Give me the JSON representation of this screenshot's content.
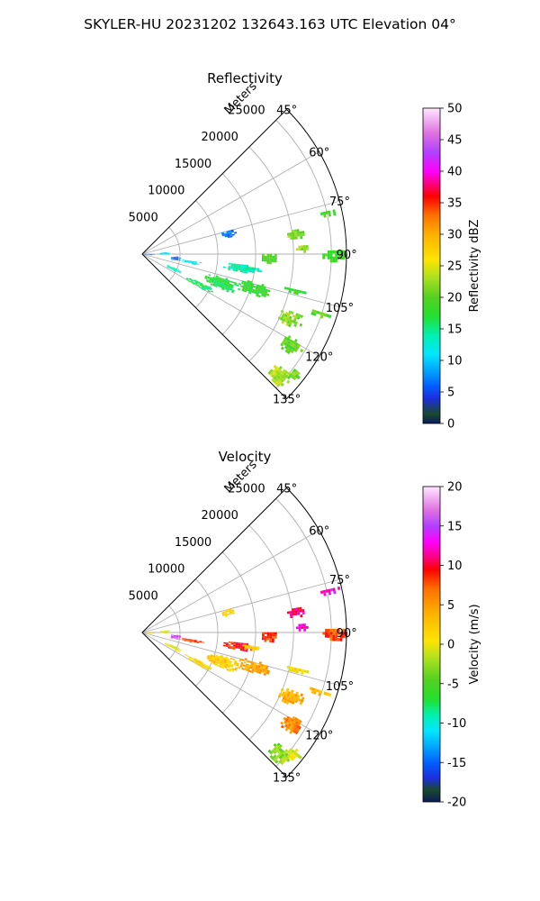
{
  "figure": {
    "title": "SKYLER-HU  20231202  132643.163 UTC Elevation 04°"
  },
  "chart_data": [
    {
      "type": "heatmap",
      "subtype": "polar-sector-ppi",
      "title": "Reflectivity",
      "range_label": "Meters",
      "range_ticks": [
        5000,
        10000,
        15000,
        20000,
        25000
      ],
      "range_lim": [
        0,
        27000
      ],
      "azimuth_ticks": [
        "45°",
        "60°",
        "75°",
        "90°",
        "105°",
        "120°",
        "135°"
      ],
      "azimuth_lim": [
        45,
        135
      ],
      "grid": true,
      "colorbar": {
        "label": "Reflectivity dBZ",
        "min": 0,
        "max": 50,
        "ticks": [
          0,
          5,
          10,
          15,
          20,
          25,
          30,
          35,
          40,
          45,
          50
        ],
        "stops": [
          {
            "v": 0,
            "c": "#0a1a5c"
          },
          {
            "v": 1.5,
            "c": "#1a4a2c"
          },
          {
            "v": 4,
            "c": "#1c2ee0"
          },
          {
            "v": 6,
            "c": "#0060ff"
          },
          {
            "v": 8.5,
            "c": "#00a8ff"
          },
          {
            "v": 11,
            "c": "#00e6ff"
          },
          {
            "v": 14,
            "c": "#00f0b0"
          },
          {
            "v": 17,
            "c": "#22e030"
          },
          {
            "v": 20,
            "c": "#55d020"
          },
          {
            "v": 23,
            "c": "#a8e020"
          },
          {
            "v": 26,
            "c": "#ffe400"
          },
          {
            "v": 30,
            "c": "#ffb000"
          },
          {
            "v": 33,
            "c": "#ff7000"
          },
          {
            "v": 36,
            "c": "#ff0000"
          },
          {
            "v": 38,
            "c": "#ff0080"
          },
          {
            "v": 40,
            "c": "#ff00ff"
          },
          {
            "v": 43,
            "c": "#b040ff"
          },
          {
            "v": 46,
            "c": "#e070e0"
          },
          {
            "v": 50,
            "c": "#ffe8ff"
          }
        ]
      },
      "echoes": [
        {
          "az": [
            80,
            84
          ],
          "r": [
            19000,
            21500
          ],
          "value": 21
        },
        {
          "az": [
            76,
            78
          ],
          "r": [
            23500,
            26500
          ],
          "value": 19
        },
        {
          "az": [
            86,
            89
          ],
          "r": [
            20000,
            22000
          ],
          "value": 22
        },
        {
          "az": [
            88,
            92
          ],
          "r": [
            23500,
            27000
          ],
          "value": 19
        },
        {
          "az": [
            89,
            94
          ],
          "r": [
            15500,
            17800
          ],
          "value": 19
        },
        {
          "az": [
            95,
            100
          ],
          "r": [
            10500,
            15000
          ],
          "value": 14
        },
        {
          "az": [
            103,
            110
          ],
          "r": [
            13000,
            17500
          ],
          "value": 18
        },
        {
          "az": [
            105,
            114
          ],
          "r": [
            8500,
            13500
          ],
          "value": 17
        },
        {
          "az": [
            115,
            120
          ],
          "r": [
            6000,
            10500
          ],
          "value": 16
        },
        {
          "az": [
            112,
            118
          ],
          "r": [
            3000,
            5500
          ],
          "value": 13
        },
        {
          "az": [
            97,
            101
          ],
          "r": [
            5000,
            8000
          ],
          "value": 12
        },
        {
          "az": [
            96,
            99
          ],
          "r": [
            13000,
            16000
          ],
          "value": 14
        },
        {
          "az": [
            102,
            104
          ],
          "r": [
            19000,
            22500
          ],
          "value": 18
        },
        {
          "az": [
            107,
            109
          ],
          "r": [
            23000,
            26000
          ],
          "value": 20
        },
        {
          "az": [
            110,
            116
          ],
          "r": [
            19500,
            23000
          ],
          "value": 22
        },
        {
          "az": [
            118,
            124
          ],
          "r": [
            21500,
            24500
          ],
          "value": 20
        },
        {
          "az": [
            128,
            134
          ],
          "r": [
            22500,
            25500
          ],
          "value": 23
        },
        {
          "az": [
            126,
            130
          ],
          "r": [
            24500,
            26500
          ],
          "value": 21
        },
        {
          "az": [
            74,
            79
          ],
          "r": [
            10500,
            12500
          ],
          "value": 7
        },
        {
          "az": [
            84,
            92
          ],
          "r": [
            2000,
            3500
          ],
          "value": 11
        },
        {
          "az": [
            90,
            96
          ],
          "r": [
            0,
            1500
          ],
          "value": 4
        },
        {
          "az": [
            93,
            101
          ],
          "r": [
            3500,
            5000
          ],
          "value": 6
        }
      ]
    },
    {
      "type": "heatmap",
      "subtype": "polar-sector-ppi",
      "title": "Velocity",
      "range_label": "Meters",
      "range_ticks": [
        5000,
        10000,
        15000,
        20000,
        25000
      ],
      "range_lim": [
        0,
        27000
      ],
      "azimuth_ticks": [
        "45°",
        "60°",
        "75°",
        "90°",
        "105°",
        "120°",
        "135°"
      ],
      "azimuth_lim": [
        45,
        135
      ],
      "grid": true,
      "colorbar": {
        "label": "Velocity (m/s)",
        "min": -20,
        "max": 20,
        "ticks": [
          -20,
          -15,
          -10,
          -5,
          0,
          5,
          10,
          15,
          20
        ],
        "stops": [
          {
            "v": -20,
            "c": "#0a1a5c"
          },
          {
            "v": -18.5,
            "c": "#1a4a2c"
          },
          {
            "v": -17,
            "c": "#1c2ee0"
          },
          {
            "v": -15,
            "c": "#0060ff"
          },
          {
            "v": -13,
            "c": "#00a8ff"
          },
          {
            "v": -11,
            "c": "#00e6ff"
          },
          {
            "v": -9,
            "c": "#00f0b0"
          },
          {
            "v": -7,
            "c": "#22e030"
          },
          {
            "v": -4.5,
            "c": "#55d020"
          },
          {
            "v": -2,
            "c": "#a8e020"
          },
          {
            "v": 0.5,
            "c": "#ffe400"
          },
          {
            "v": 4,
            "c": "#ffb000"
          },
          {
            "v": 7,
            "c": "#ff7000"
          },
          {
            "v": 9.5,
            "c": "#ff0000"
          },
          {
            "v": 11,
            "c": "#ff0080"
          },
          {
            "v": 13,
            "c": "#ff00ff"
          },
          {
            "v": 15,
            "c": "#b040ff"
          },
          {
            "v": 17,
            "c": "#e070e0"
          },
          {
            "v": 20,
            "c": "#ffe8ff"
          }
        ]
      },
      "echoes": [
        {
          "az": [
            80,
            84
          ],
          "r": [
            19000,
            21500
          ],
          "value": 11
        },
        {
          "az": [
            76,
            78
          ],
          "r": [
            23500,
            26500
          ],
          "value": 13
        },
        {
          "az": [
            86,
            89
          ],
          "r": [
            20000,
            22000
          ],
          "value": 12
        },
        {
          "az": [
            88,
            92
          ],
          "r": [
            23500,
            27000
          ],
          "value": 8
        },
        {
          "az": [
            89,
            94
          ],
          "r": [
            15500,
            17800
          ],
          "value": 8
        },
        {
          "az": [
            95,
            100
          ],
          "r": [
            10500,
            15000
          ],
          "value": 9
        },
        {
          "az": [
            103,
            110
          ],
          "r": [
            13000,
            17500
          ],
          "value": 4
        },
        {
          "az": [
            105,
            114
          ],
          "r": [
            8500,
            13500
          ],
          "value": 2
        },
        {
          "az": [
            115,
            120
          ],
          "r": [
            6000,
            10500
          ],
          "value": 1
        },
        {
          "az": [
            112,
            118
          ],
          "r": [
            3000,
            5500
          ],
          "value": 0
        },
        {
          "az": [
            97,
            101
          ],
          "r": [
            5000,
            8000
          ],
          "value": 8
        },
        {
          "az": [
            96,
            99
          ],
          "r": [
            13000,
            16000
          ],
          "value": 2
        },
        {
          "az": [
            102,
            104
          ],
          "r": [
            19000,
            22500
          ],
          "value": 1
        },
        {
          "az": [
            107,
            109
          ],
          "r": [
            23000,
            26000
          ],
          "value": 3
        },
        {
          "az": [
            110,
            116
          ],
          "r": [
            19500,
            23000
          ],
          "value": 4
        },
        {
          "az": [
            118,
            124
          ],
          "r": [
            21500,
            24500
          ],
          "value": 6
        },
        {
          "az": [
            128,
            134
          ],
          "r": [
            22500,
            25500
          ],
          "value": -3
        },
        {
          "az": [
            126,
            130
          ],
          "r": [
            24500,
            26500
          ],
          "value": -1
        },
        {
          "az": [
            74,
            79
          ],
          "r": [
            10500,
            12500
          ],
          "value": 1
        },
        {
          "az": [
            84,
            92
          ],
          "r": [
            2000,
            3500
          ],
          "value": -1
        },
        {
          "az": [
            90,
            96
          ],
          "r": [
            0,
            1500
          ],
          "value": 1
        },
        {
          "az": [
            93,
            101
          ],
          "r": [
            3500,
            5000
          ],
          "value": 14
        }
      ]
    }
  ]
}
